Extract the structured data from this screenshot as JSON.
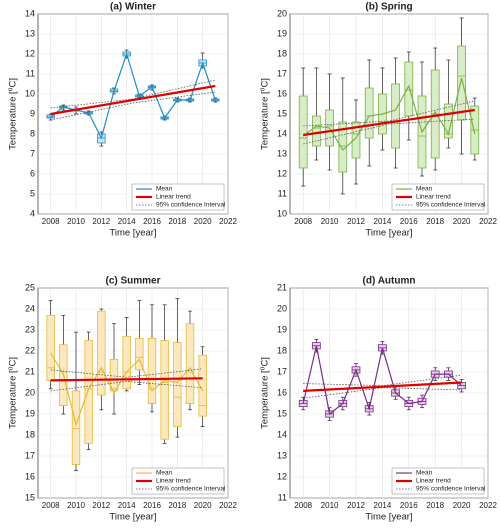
{
  "chart_data": [
    {
      "type": "box",
      "title": "(a) Winter",
      "xlabel": "Time [year]",
      "ylabel": "Temperature [⁰C]",
      "xlim": [
        2007,
        2022
      ],
      "xticks": [
        2008,
        2010,
        2012,
        2014,
        2016,
        2018,
        2020,
        2022
      ],
      "ylim": [
        4,
        14
      ],
      "yticks": [
        4,
        5,
        6,
        7,
        8,
        9,
        10,
        11,
        12,
        13,
        14
      ],
      "grid": true,
      "color": "#1f8fc8",
      "box_color": "#cde6f3",
      "x": [
        2008,
        2009,
        2010,
        2011,
        2012,
        2013,
        2014,
        2015,
        2016,
        2017,
        2018,
        2019,
        2020,
        2021
      ],
      "boxes": {
        "min": [
          8.7,
          9.2,
          9.0,
          8.95,
          7.4,
          10.0,
          11.8,
          9.8,
          10.2,
          8.7,
          9.6,
          9.6,
          11.3,
          9.6
        ],
        "q1": [
          8.8,
          9.3,
          9.15,
          9.0,
          7.55,
          10.1,
          11.9,
          9.85,
          10.3,
          8.75,
          9.65,
          9.65,
          11.4,
          9.65
        ],
        "median": [
          8.85,
          9.35,
          9.2,
          9.05,
          7.8,
          10.15,
          12.0,
          9.9,
          10.35,
          8.8,
          9.7,
          9.7,
          11.55,
          9.7
        ],
        "q3": [
          8.95,
          9.4,
          9.25,
          9.1,
          8.0,
          10.25,
          12.1,
          9.95,
          10.4,
          8.85,
          9.75,
          9.75,
          11.7,
          9.75
        ],
        "max": [
          9.0,
          9.45,
          9.35,
          9.15,
          8.1,
          10.3,
          12.2,
          10.0,
          10.45,
          8.9,
          9.8,
          9.8,
          12.05,
          9.8
        ]
      },
      "series": [
        {
          "name": "Mean",
          "color": "#1f8fc8",
          "values": [
            8.85,
            9.35,
            9.2,
            9.05,
            7.8,
            10.15,
            12.0,
            9.9,
            10.35,
            8.8,
            9.7,
            9.7,
            11.55,
            9.7
          ]
        },
        {
          "name": "Linear trend",
          "color": "#e00000",
          "x": [
            2008,
            2021
          ],
          "values": [
            9.0,
            10.4
          ]
        },
        {
          "name": "95% confidence Interval",
          "color": "#555555",
          "x": [
            2008,
            2014.5,
            2021
          ],
          "upper": [
            9.3,
            9.75,
            10.7
          ],
          "lower": [
            8.7,
            9.55,
            10.1
          ]
        }
      ]
    },
    {
      "type": "box",
      "title": "(b) Spring",
      "xlabel": "Time [year]",
      "ylabel": "Temperature [⁰C]",
      "xlim": [
        2007,
        2022
      ],
      "xticks": [
        2008,
        2010,
        2012,
        2014,
        2016,
        2018,
        2020,
        2022
      ],
      "ylim": [
        10,
        20
      ],
      "yticks": [
        10,
        11,
        12,
        13,
        14,
        15,
        16,
        17,
        18,
        19,
        20
      ],
      "grid": true,
      "color": "#77b343",
      "box_color": "#d9ecc8",
      "x": [
        2008,
        2009,
        2010,
        2011,
        2012,
        2013,
        2014,
        2015,
        2016,
        2017,
        2018,
        2019,
        2020,
        2021
      ],
      "boxes": {
        "min": [
          11.4,
          12.7,
          12.2,
          11.0,
          11.5,
          12.4,
          13.2,
          12.3,
          13.7,
          11.9,
          12.2,
          13.3,
          13.0,
          12.7
        ],
        "q1": [
          12.3,
          13.4,
          13.4,
          12.1,
          12.8,
          13.8,
          14.0,
          13.3,
          14.9,
          12.3,
          12.8,
          13.8,
          14.7,
          13.0
        ],
        "median": [
          13.8,
          14.3,
          14.4,
          13.4,
          14.0,
          14.9,
          14.6,
          14.6,
          16.2,
          13.9,
          15.0,
          14.0,
          16.9,
          14.2
        ],
        "q3": [
          15.9,
          14.9,
          15.2,
          14.6,
          14.6,
          16.3,
          16.0,
          16.5,
          17.6,
          15.9,
          17.2,
          15.5,
          18.4,
          15.4
        ],
        "max": [
          17.3,
          17.3,
          17.0,
          16.8,
          15.7,
          17.7,
          17.3,
          17.8,
          18.1,
          17.6,
          18.3,
          17.7,
          19.8,
          15.8
        ]
      },
      "series": [
        {
          "name": "Mean",
          "color": "#77b343",
          "values": [
            13.9,
            14.4,
            14.3,
            13.2,
            13.8,
            14.9,
            15.0,
            15.2,
            16.4,
            14.1,
            15.1,
            14.0,
            16.8,
            14.0
          ]
        },
        {
          "name": "Linear trend",
          "color": "#e00000",
          "x": [
            2008,
            2021
          ],
          "values": [
            13.95,
            15.2
          ]
        },
        {
          "name": "95% confidence Interval",
          "color": "#555555",
          "x": [
            2008,
            2014.5,
            2021
          ],
          "upper": [
            14.4,
            14.65,
            15.65
          ],
          "lower": [
            13.5,
            14.5,
            14.75
          ]
        }
      ]
    },
    {
      "type": "box",
      "title": "(c) Summer",
      "xlabel": "Time [year]",
      "ylabel": "Temperature [⁰C]",
      "xlim": [
        2007,
        2022
      ],
      "xticks": [
        2008,
        2010,
        2012,
        2014,
        2016,
        2018,
        2020,
        2022
      ],
      "ylim": [
        15,
        25
      ],
      "yticks": [
        15,
        16,
        17,
        18,
        19,
        20,
        21,
        22,
        23,
        24,
        25
      ],
      "grid": true,
      "color": "#e8b939",
      "box_color": "#fbe8bf",
      "x": [
        2008,
        2009,
        2010,
        2011,
        2012,
        2013,
        2014,
        2015,
        2016,
        2017,
        2018,
        2019,
        2020
      ],
      "boxes": {
        "min": [
          20.2,
          19.0,
          16.3,
          17.3,
          19.2,
          19.0,
          20.1,
          20.4,
          19.1,
          17.6,
          17.9,
          19.2,
          18.4
        ],
        "q1": [
          20.6,
          19.4,
          16.6,
          17.6,
          19.9,
          20.1,
          20.2,
          21.1,
          19.5,
          17.8,
          18.4,
          19.5,
          18.9
        ],
        "median": [
          21.2,
          21.0,
          18.3,
          20.2,
          21.0,
          20.2,
          21.0,
          21.7,
          20.2,
          20.5,
          19.8,
          21.0,
          19.4
        ],
        "q3": [
          23.7,
          22.3,
          20.1,
          22.5,
          23.9,
          21.6,
          22.7,
          22.6,
          22.6,
          22.5,
          22.4,
          23.3,
          21.8
        ],
        "max": [
          24.4,
          23.7,
          22.9,
          22.9,
          24.0,
          23.3,
          23.6,
          24.4,
          24.2,
          24.2,
          24.5,
          23.9,
          22.2
        ]
      },
      "series": [
        {
          "name": "Mean",
          "color": "#e8b939",
          "values": [
            21.9,
            20.9,
            18.5,
            20.2,
            21.2,
            20.0,
            21.0,
            21.6,
            20.1,
            20.6,
            20.5,
            21.2,
            20.1
          ]
        },
        {
          "name": "Linear trend",
          "color": "#e00000",
          "x": [
            2008,
            2020
          ],
          "values": [
            20.6,
            20.7
          ]
        },
        {
          "name": "95% confidence Interval",
          "color": "#555555",
          "x": [
            2008,
            2014,
            2020
          ],
          "upper": [
            21.1,
            20.75,
            21.15
          ],
          "lower": [
            20.1,
            20.55,
            20.25
          ]
        }
      ]
    },
    {
      "type": "box",
      "title": "(d) Autumn",
      "xlabel": "Time [year]",
      "ylabel": "Temperature [⁰C]",
      "xlim": [
        2007,
        2022
      ],
      "xticks": [
        2008,
        2010,
        2012,
        2014,
        2016,
        2018,
        2020,
        2022
      ],
      "ylim": [
        11,
        21
      ],
      "yticks": [
        11,
        12,
        13,
        14,
        15,
        16,
        17,
        18,
        19,
        20,
        21
      ],
      "grid": true,
      "color": "#7e2b8e",
      "box_color": "#e5d0e8",
      "x": [
        2008,
        2009,
        2010,
        2011,
        2012,
        2013,
        2014,
        2015,
        2016,
        2017,
        2018,
        2019,
        2020
      ],
      "boxes": {
        "min": [
          15.2,
          17.95,
          14.7,
          15.2,
          16.8,
          14.95,
          17.85,
          15.7,
          15.2,
          15.3,
          16.6,
          16.6,
          16.05
        ],
        "q1": [
          15.35,
          18.1,
          14.85,
          15.35,
          16.95,
          15.1,
          18.0,
          15.85,
          15.35,
          15.45,
          16.75,
          16.75,
          16.2
        ],
        "median": [
          15.5,
          18.25,
          15.0,
          15.5,
          17.1,
          15.25,
          18.15,
          16.0,
          15.5,
          15.6,
          16.9,
          16.9,
          16.35
        ],
        "q3": [
          15.65,
          18.4,
          15.15,
          15.65,
          17.25,
          15.4,
          18.3,
          16.15,
          15.65,
          15.75,
          17.05,
          17.05,
          16.5
        ],
        "max": [
          15.8,
          18.55,
          15.3,
          15.8,
          17.4,
          15.55,
          18.45,
          16.3,
          15.8,
          15.9,
          17.2,
          17.2,
          16.65
        ]
      },
      "series": [
        {
          "name": "Mean",
          "color": "#7e2b8e",
          "values": [
            15.5,
            18.25,
            15.0,
            15.5,
            17.1,
            15.25,
            18.15,
            16.0,
            15.5,
            15.6,
            16.9,
            16.9,
            16.35
          ]
        },
        {
          "name": "Linear trend",
          "color": "#e00000",
          "x": [
            2008,
            2020
          ],
          "values": [
            16.1,
            16.5
          ]
        },
        {
          "name": "95% confidence Interval",
          "color": "#555555",
          "x": [
            2008,
            2014,
            2020
          ],
          "upper": [
            16.45,
            16.35,
            16.85
          ],
          "lower": [
            15.75,
            16.25,
            16.15
          ]
        }
      ]
    }
  ]
}
